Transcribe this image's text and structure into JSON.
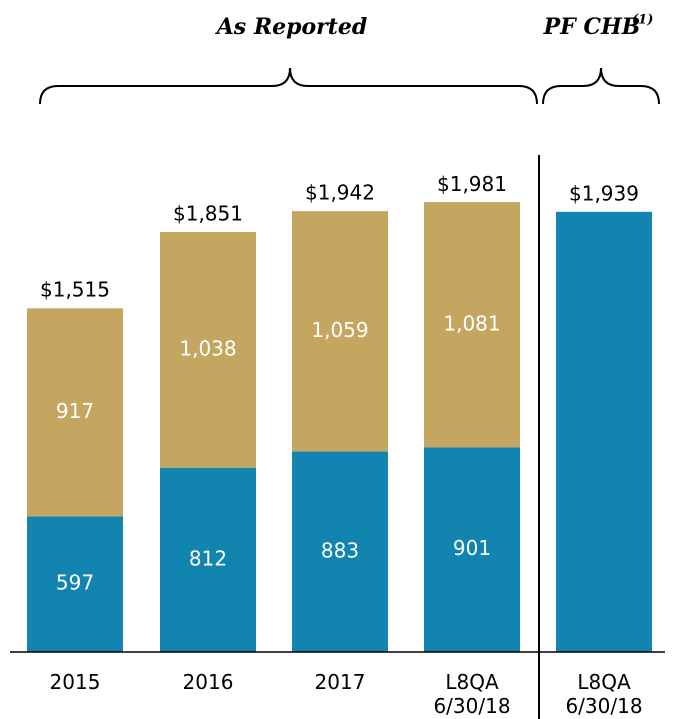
{
  "chart_data": {
    "type": "stacked_bar",
    "groups": [
      {
        "label": "As Reported"
      },
      {
        "label": "PF CHB",
        "note": "(1)"
      }
    ],
    "categories": [
      "2015",
      "2016",
      "2017",
      "L8QA\n6/30/18",
      "L8QA\n6/30/18"
    ],
    "series": [
      {
        "color": "#1284b0",
        "values": [
          597,
          812,
          883,
          901,
          null
        ]
      },
      {
        "color": "#c4a661",
        "values": [
          917,
          1038,
          1059,
          1081,
          null
        ],
        "value_labels": [
          "917",
          "1,038",
          "1,059",
          "1,081",
          null
        ]
      }
    ],
    "totals": {
      "values": [
        1515,
        1851,
        1942,
        1981,
        1939
      ],
      "value_labels": [
        "$1,515",
        "$1,851",
        "$1,942",
        "$1,981",
        "$1,939"
      ]
    },
    "ylim": [
      0,
      2200
    ]
  }
}
